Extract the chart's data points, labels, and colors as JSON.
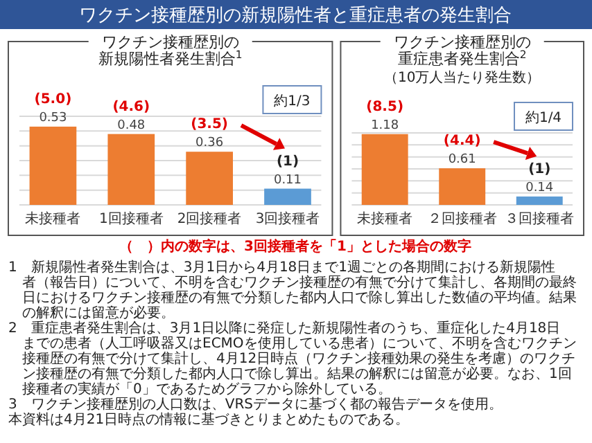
{
  "chart_data": [
    {
      "type": "other",
      "title": "ワクチン接種歴別の新規陽性者と重症患者の発生割合",
      "annotations": [
        "（　）内の数字は、3回接種者を「1」とした場合の数字",
        "1　新規陽性者発生割合は、3月1日から4月18日まで1週ごとの各期間における新規陽性者（報告日）について、不明を含むワクチン接種歴の有無で分けて集計し、各期間の最終日におけるワクチン接種歴の有無で分類した都内人口で除し算出した数値の平均値。結果の解釈には留意が必要。",
        "2　重症患者発生割合は、3月1日以降に発症した新規陽性者のうち、重症化した4月18日までの患者（人工呼吸器又はECMOを使用している患者）について、不明を含むワクチン接種歴の有無で分けて集計し、4月12日時点（ワクチン接種効果の発生を考慮）のワクチン接種歴の有無で分類した都内人口で除し算出。結果の解釈には留意が必要。なお、1回接種者の実績が「0」であるためグラフから除外している。",
        "3　ワクチン接種歴別の人口数は、VRSデータに基づく都の報告データを使用。",
        "本資料は4月21日時点の情報に基づきとりまとめたものである。"
      ]
    },
    {
      "type": "bar",
      "title": "ワクチン接種歴別の新規陽性者発生割合$^{1}$",
      "categories": [
        "未接種者",
        "1回接種者",
        "2回接種者",
        "3回接種者"
      ],
      "values": [
        0.53,
        0.48,
        0.36,
        0.11
      ],
      "colors": [
        "#ed7d31",
        "#ed7d31",
        "#ed7d31",
        "#5b9bd5"
      ],
      "data_labels": true,
      "ylim": [
        0,
        0.6
      ],
      "yticks": [
        {
          "value": 0,
          "label": null
        },
        {
          "value": 0.1,
          "label": null
        },
        {
          "value": 0.2,
          "label": null
        },
        {
          "value": 0.3,
          "label": null
        },
        {
          "value": 0.4,
          "label": null
        },
        {
          "value": 0.5,
          "label": null
        },
        {
          "value": 0.6,
          "label": null
        }
      ],
      "tick_labels": "x",
      "grid": "y",
      "annotations": [
        {
          "text": "(5.0)",
          "x": "未接種者",
          "y": 0.53
        },
        {
          "text": "(4.6)",
          "x": "1回接種者",
          "y": 0.48
        },
        {
          "text": "(3.5)",
          "x": "2回接種者",
          "y": 0.36
        },
        {
          "text": "(1)",
          "x": "3回接種者",
          "y": 0.11
        },
        "約1/3"
      ]
    },
    {
      "type": "bar",
      "title": "ワクチン接種歴別の重症患者発生割合$^{2}$",
      "subtitle": "（10万人当たり発生数）",
      "categories": [
        "未接種者",
        "２回接種者",
        "３回接種者"
      ],
      "values": [
        1.18,
        0.61,
        0.14
      ],
      "colors": [
        "#ed7d31",
        "#ed7d31",
        "#5b9bd5"
      ],
      "data_labels": true,
      "ylim": [
        0,
        1.2
      ],
      "yticks": [
        {
          "value": 0,
          "label": null
        },
        {
          "value": 0.2,
          "label": null
        },
        {
          "value": 0.4,
          "label": null
        },
        {
          "value": 0.6,
          "label": null
        },
        {
          "value": 0.8,
          "label": null
        },
        {
          "value": 1.0,
          "label": null
        },
        {
          "value": 1.2,
          "label": null
        }
      ],
      "tick_labels": "x",
      "grid": "y",
      "annotations": [
        {
          "text": "(8.5)",
          "x": "未接種者",
          "y": 1.18
        },
        {
          "text": "(4.4)",
          "x": "２回接種者",
          "y": 0.61
        },
        {
          "text": "(1)",
          "x": "３回接種者",
          "y": 0.14
        },
        "約1/4"
      ]
    }
  ]
}
